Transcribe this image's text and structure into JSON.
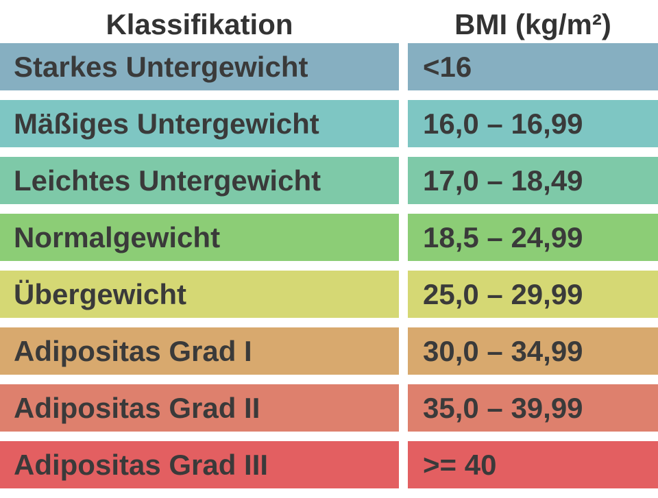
{
  "header": {
    "classification": "Klassifikation",
    "bmi": "BMI (kg/m²)"
  },
  "rows": [
    {
      "classification": "Starkes Untergewicht",
      "bmi": "<16",
      "color": "#86afc1"
    },
    {
      "classification": "Mäßiges Untergewicht",
      "bmi": "16,0 – 16,99",
      "color": "#7ec6c3"
    },
    {
      "classification": "Leichtes Untergewicht",
      "bmi": "17,0 – 18,49",
      "color": "#7ec9a8"
    },
    {
      "classification": "Normalgewicht",
      "bmi": "18,5 – 24,99",
      "color": "#8ccd76"
    },
    {
      "classification": "Übergewicht",
      "bmi": "25,0 – 29,99",
      "color": "#d5d874"
    },
    {
      "classification": "Adipositas Grad I",
      "bmi": "30,0 – 34,99",
      "color": "#d8a96e"
    },
    {
      "classification": "Adipositas Grad II",
      "bmi": "35,0 – 39,99",
      "color": "#de806d"
    },
    {
      "classification": "Adipositas Grad III",
      "bmi": ">= 40",
      "color": "#e35f61"
    }
  ]
}
